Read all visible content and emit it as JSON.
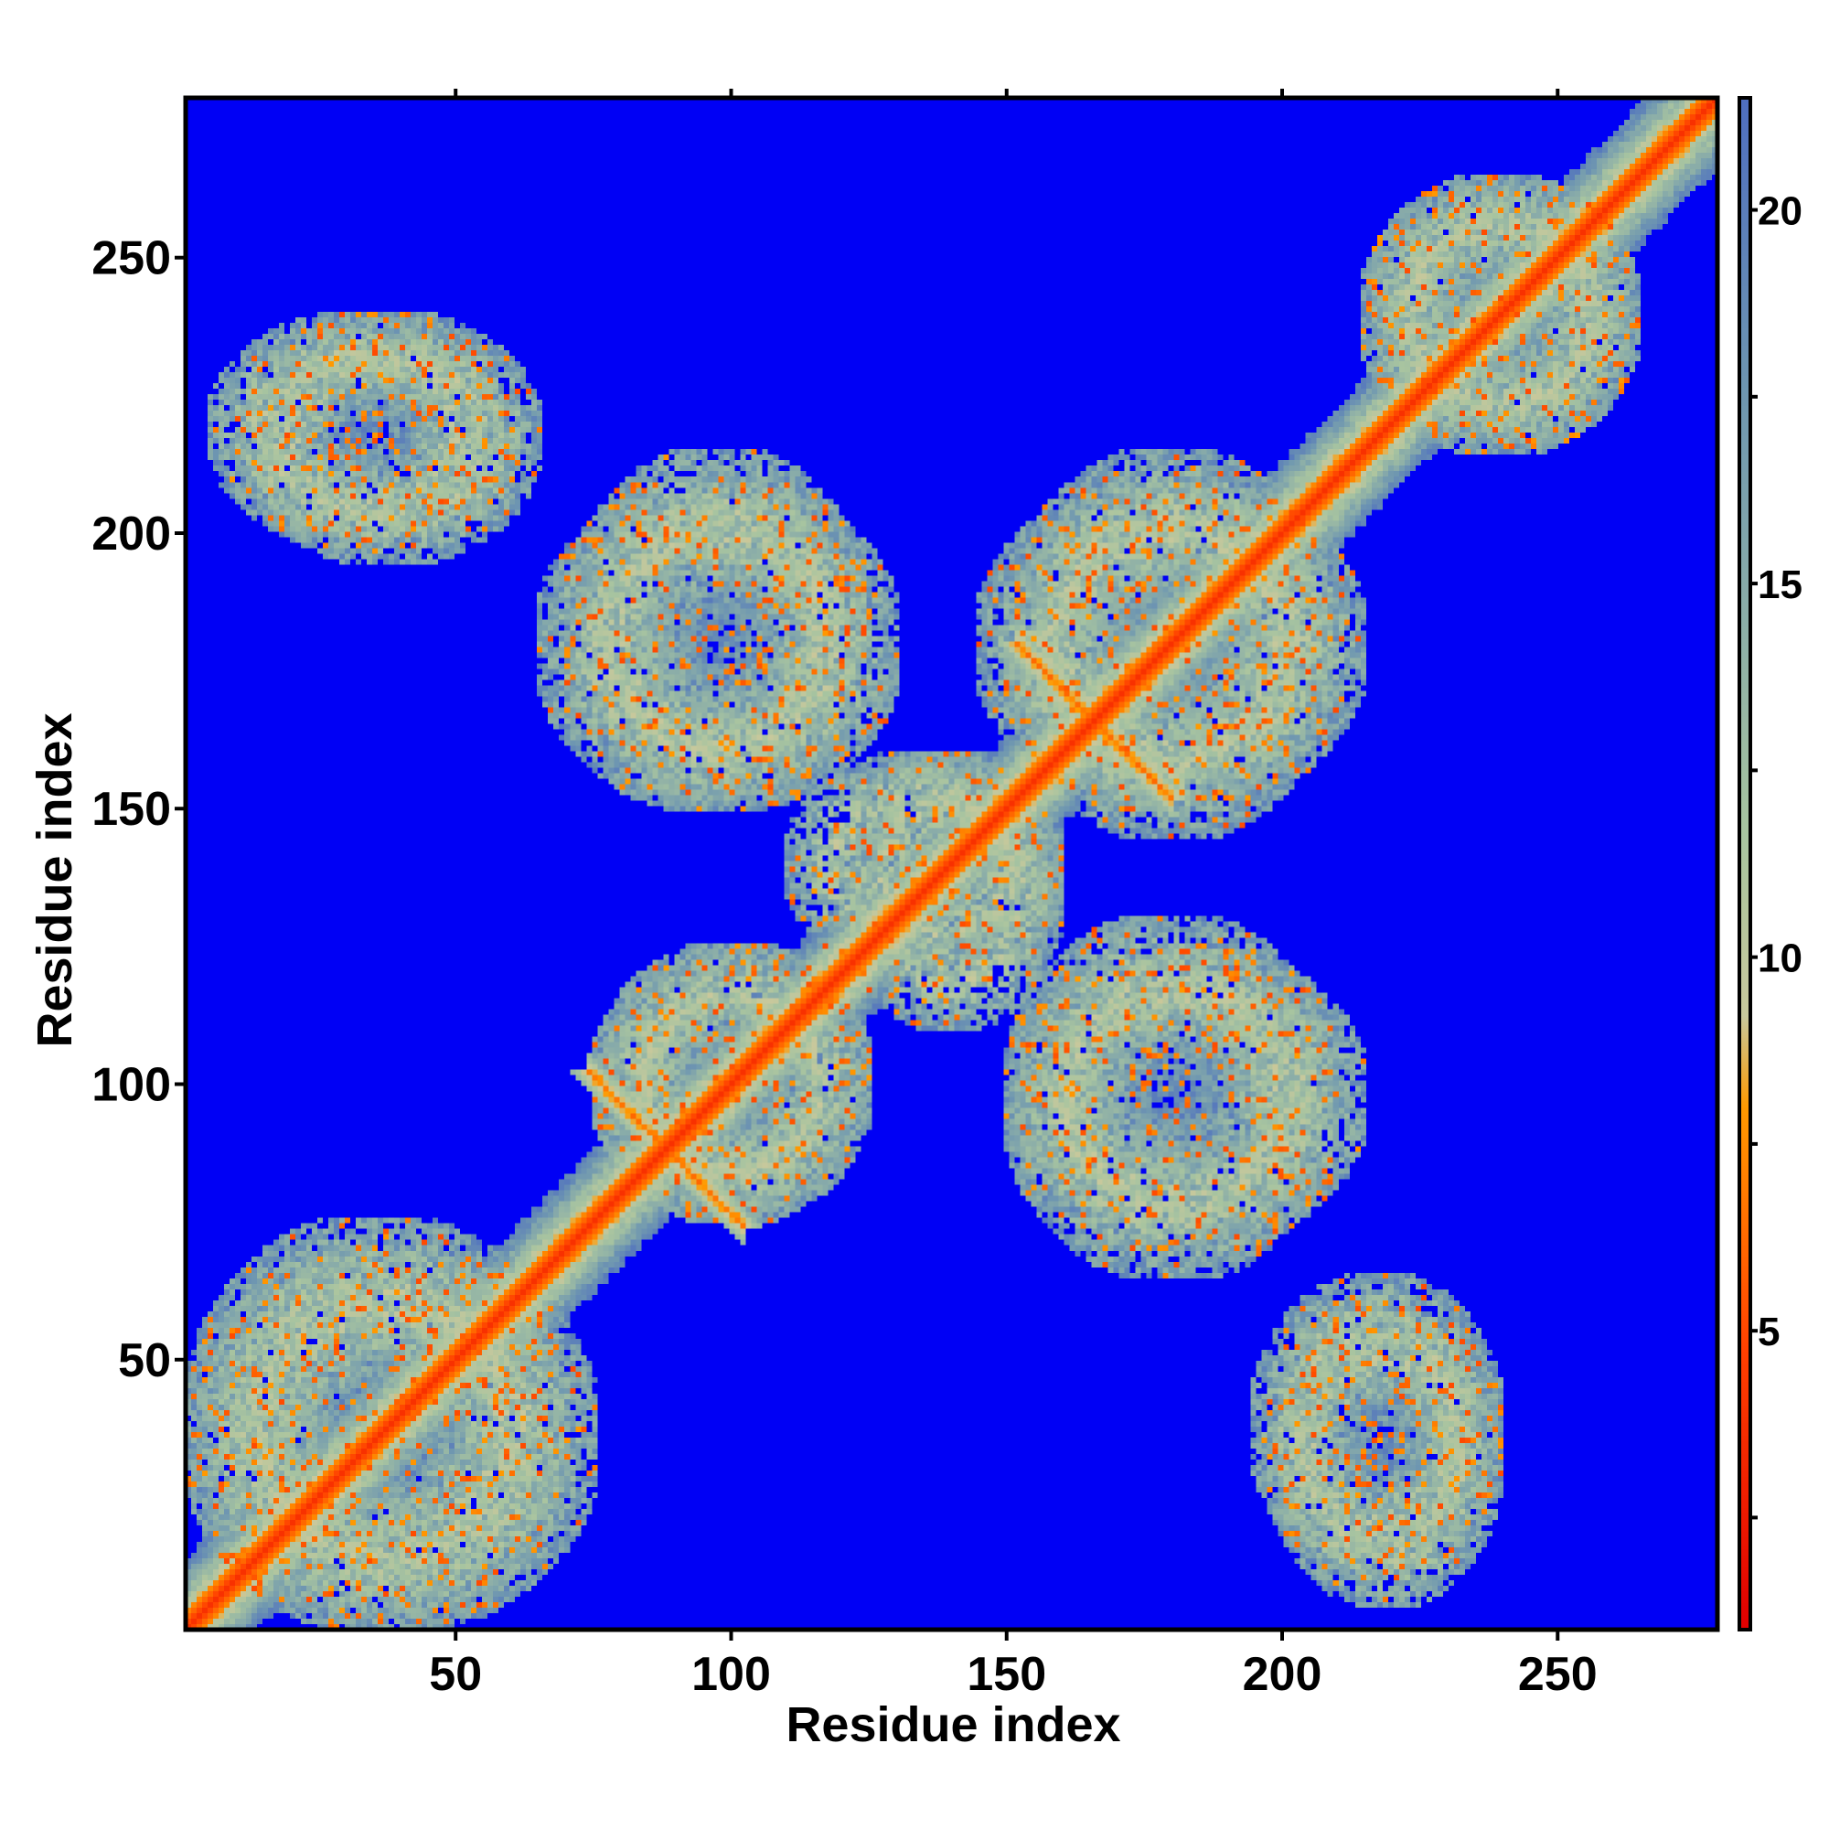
{
  "chart_data": {
    "type": "heatmap",
    "title": "",
    "xlabel": "Residue index",
    "ylabel": "Residue index",
    "xlim": [
      1,
      279
    ],
    "ylim": [
      1,
      279
    ],
    "x_ticks": [
      "50",
      "100",
      "150",
      "200",
      "250"
    ],
    "y_ticks": [
      "50",
      "100",
      "150",
      "200",
      "250"
    ],
    "colorbar": {
      "ticks": [
        "5",
        "10",
        "15",
        "20"
      ],
      "range": [
        1,
        21.5
      ],
      "colors": {
        "low": "#e8140c",
        "mid_low": "#ff8c00",
        "mid": "#b4c89a",
        "high": "#5a7fb8",
        "background": "#0000f5"
      }
    },
    "matrix_description_values": {
      "diagonal_distance": 3.8,
      "background_distance": 21
    },
    "contact_bands": [
      {
        "kind": "diagonal",
        "from": [
          1,
          1
        ],
        "to": [
          279,
          279
        ]
      },
      {
        "kind": "helix_cross",
        "center": [
          88,
          88
        ]
      },
      {
        "kind": "helix_cross",
        "center": [
          166,
          166
        ]
      },
      {
        "kind": "block",
        "x": [
          1,
          70
        ],
        "y": [
          1,
          75
        ]
      },
      {
        "kind": "block",
        "x": [
          5,
          60
        ],
        "y": [
          198,
          240
        ]
      },
      {
        "kind": "block",
        "x": [
          65,
          130
        ],
        "y": [
          150,
          210
        ]
      },
      {
        "kind": "block",
        "x": [
          145,
          215
        ],
        "y": [
          150,
          210
        ]
      },
      {
        "kind": "block",
        "x": [
          120,
          160
        ],
        "y": [
          110,
          160
        ]
      },
      {
        "kind": "block",
        "x": [
          150,
          215
        ],
        "y": [
          70,
          125
        ]
      },
      {
        "kind": "block",
        "x": [
          195,
          240
        ],
        "y": [
          10,
          65
        ]
      },
      {
        "kind": "block",
        "x": [
          75,
          125
        ],
        "y": [
          75,
          125
        ]
      },
      {
        "kind": "block",
        "x": [
          215,
          265
        ],
        "y": [
          215,
          265
        ]
      }
    ]
  }
}
